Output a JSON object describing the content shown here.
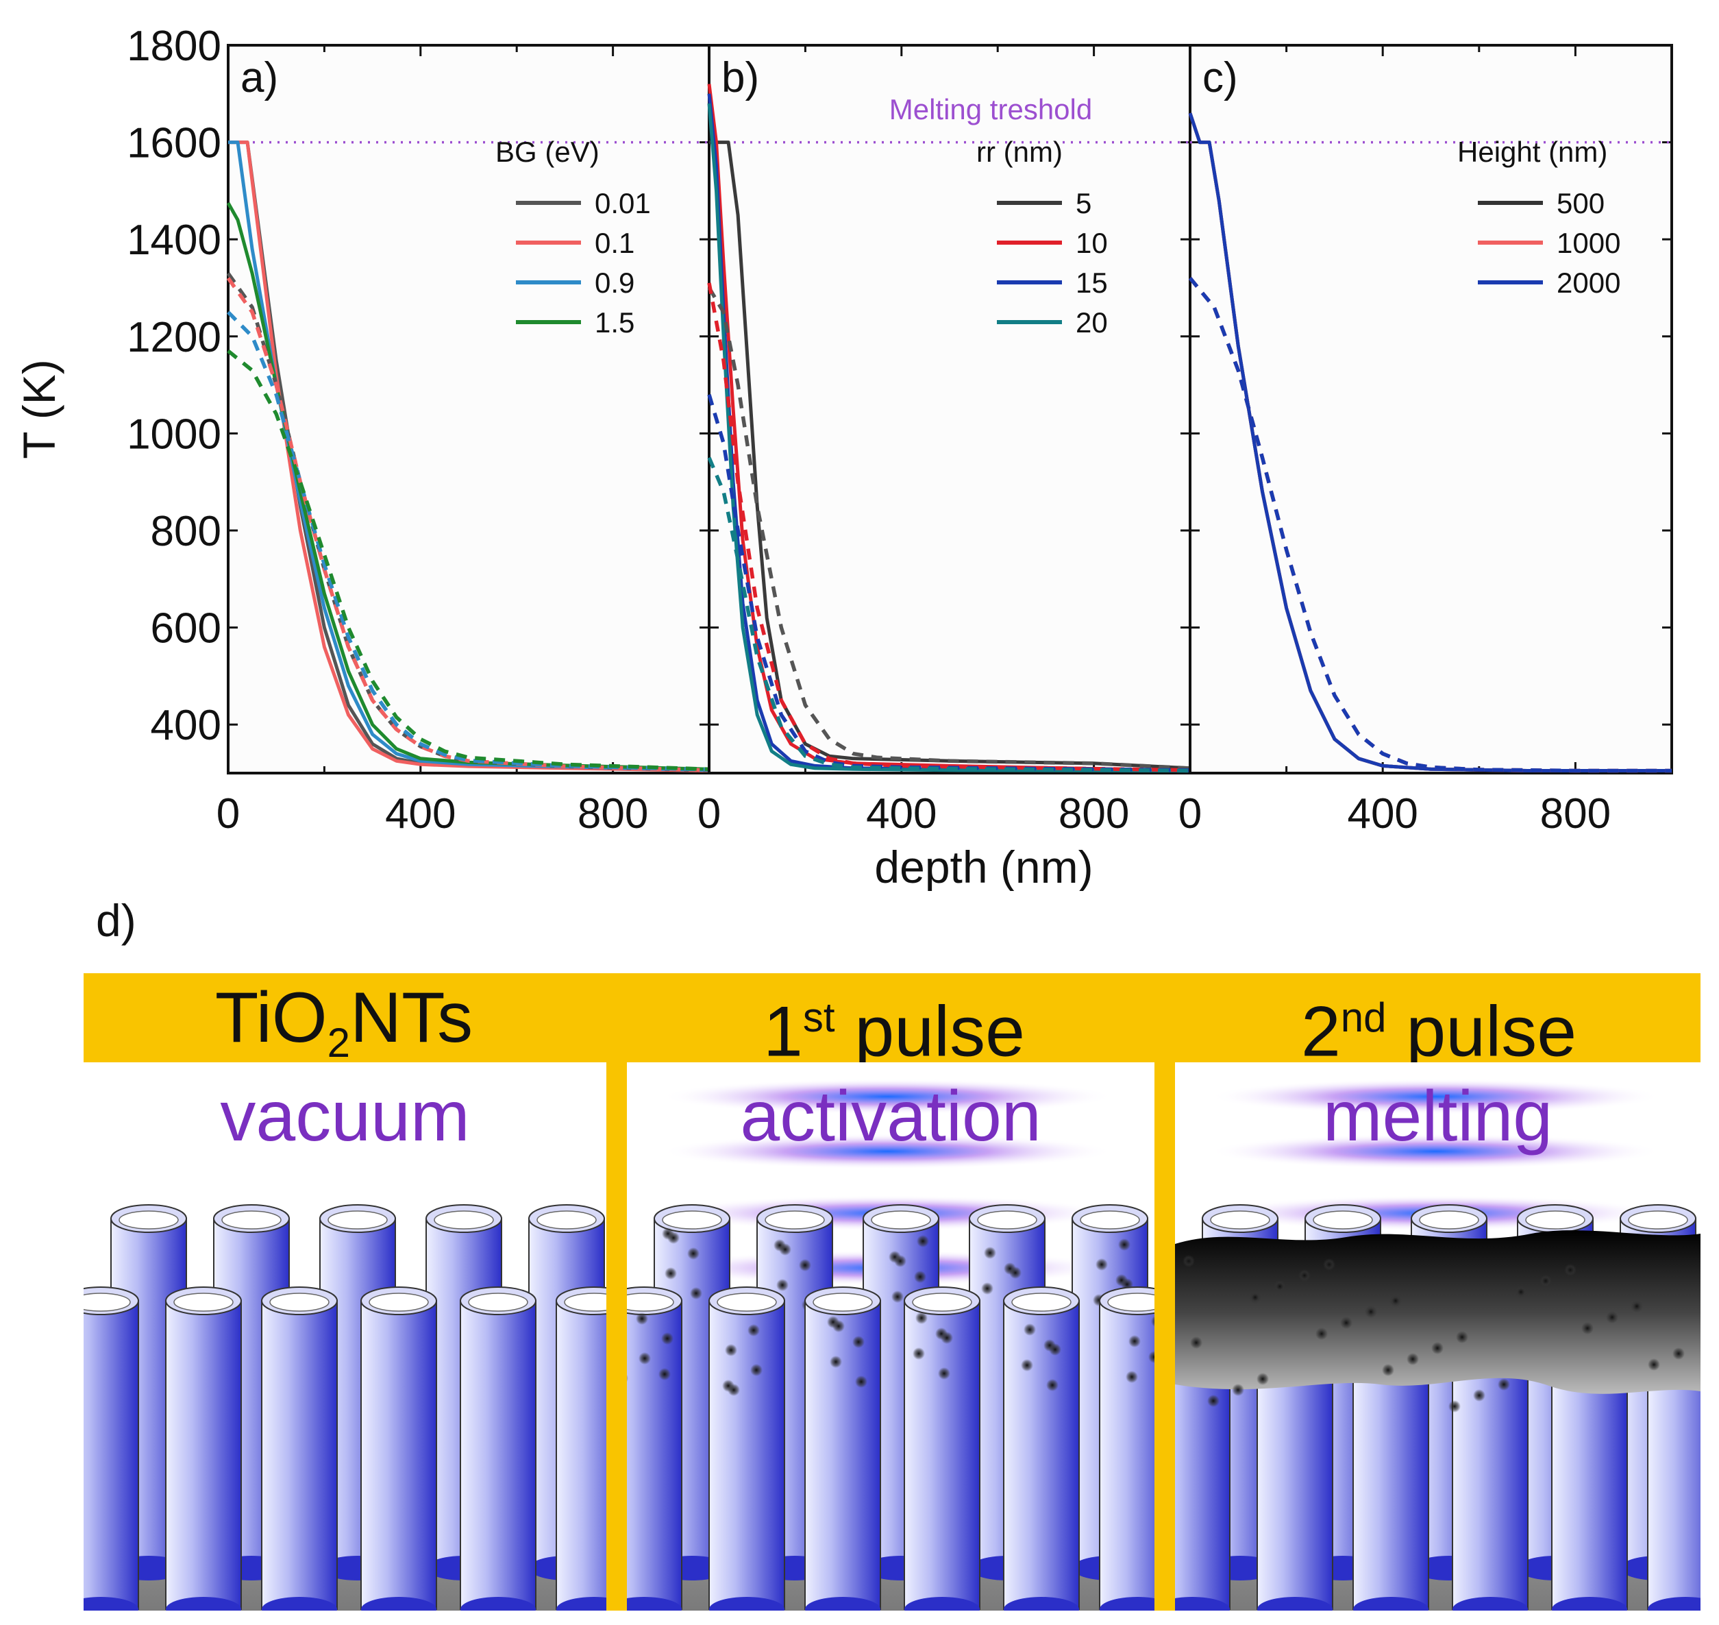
{
  "chart_data": [
    {
      "type": "line",
      "panel": "a)",
      "xlim": [
        0,
        1000
      ],
      "ylim": [
        300,
        1800
      ],
      "xticks": [
        "0",
        "400",
        "800"
      ],
      "xtick_values": [
        0,
        400,
        800
      ],
      "ylabel": "T (K)",
      "yticks": [
        "1800",
        "1600",
        "1400",
        "1200",
        "1000",
        "800",
        "600",
        "400"
      ],
      "ytick_values": [
        1800,
        1600,
        1400,
        1200,
        1000,
        800,
        600,
        400
      ],
      "legend_title": "BG (eV)",
      "threshold": 1600,
      "series": [
        {
          "name": "0.01",
          "color": "#555555",
          "style": "solid",
          "x": [
            0,
            40,
            60,
            100,
            150,
            200,
            250,
            300,
            350,
            400,
            500,
            700,
            1000
          ],
          "y": [
            1600,
            1600,
            1450,
            1150,
            850,
            600,
            440,
            360,
            330,
            320,
            315,
            312,
            305
          ]
        },
        {
          "name": "0.1",
          "color": "#F06060",
          "style": "solid",
          "x": [
            0,
            40,
            60,
            100,
            150,
            200,
            250,
            300,
            350,
            400,
            500,
            700,
            1000
          ],
          "y": [
            1600,
            1600,
            1440,
            1120,
            800,
            560,
            420,
            350,
            325,
            318,
            314,
            310,
            305
          ]
        },
        {
          "name": "0.9",
          "color": "#2E8BC8",
          "style": "solid",
          "x": [
            0,
            20,
            50,
            100,
            150,
            200,
            250,
            300,
            350,
            400,
            500,
            700,
            1000
          ],
          "y": [
            1600,
            1600,
            1380,
            1100,
            860,
            640,
            480,
            380,
            340,
            325,
            318,
            313,
            306
          ]
        },
        {
          "name": "1.5",
          "color": "#1F8A2E",
          "style": "solid",
          "x": [
            0,
            20,
            50,
            100,
            150,
            200,
            250,
            300,
            350,
            400,
            500,
            700,
            1000
          ],
          "y": [
            1475,
            1440,
            1330,
            1100,
            880,
            670,
            510,
            400,
            350,
            330,
            322,
            316,
            308
          ]
        },
        {
          "name": "0.01",
          "color": "#555555",
          "style": "dashed",
          "x": [
            0,
            50,
            100,
            150,
            200,
            250,
            300,
            350,
            400,
            450,
            500,
            700,
            1000
          ],
          "y": [
            1330,
            1260,
            1100,
            900,
            720,
            560,
            450,
            390,
            355,
            335,
            325,
            314,
            306
          ]
        },
        {
          "name": "0.1",
          "color": "#F06060",
          "style": "dashed",
          "x": [
            0,
            50,
            100,
            150,
            200,
            250,
            300,
            350,
            400,
            450,
            500,
            700,
            1000
          ],
          "y": [
            1320,
            1250,
            1100,
            900,
            720,
            560,
            450,
            390,
            355,
            335,
            325,
            314,
            306
          ]
        },
        {
          "name": "0.9",
          "color": "#2E8BC8",
          "style": "dashed",
          "x": [
            0,
            50,
            100,
            150,
            200,
            250,
            300,
            350,
            400,
            450,
            500,
            700,
            1000
          ],
          "y": [
            1250,
            1200,
            1080,
            900,
            730,
            580,
            470,
            400,
            360,
            338,
            326,
            315,
            307
          ]
        },
        {
          "name": "1.5",
          "color": "#1F8A2E",
          "style": "dashed",
          "x": [
            0,
            50,
            100,
            150,
            200,
            250,
            300,
            350,
            400,
            450,
            500,
            700,
            1000
          ],
          "y": [
            1170,
            1130,
            1040,
            900,
            750,
            600,
            490,
            415,
            370,
            345,
            332,
            318,
            308
          ]
        }
      ]
    },
    {
      "type": "line",
      "panel": "b)",
      "annotation": "Melting treshold",
      "xlim": [
        0,
        1000
      ],
      "ylim": [
        300,
        1800
      ],
      "xticks": [
        "0",
        "400",
        "800"
      ],
      "xtick_values": [
        0,
        400,
        800
      ],
      "xlabel": "depth (nm)",
      "legend_title": "rr (nm)",
      "threshold": 1600,
      "series": [
        {
          "name": "5",
          "color": "#3A3A3A",
          "style": "solid",
          "x": [
            0,
            20,
            40,
            60,
            80,
            100,
            120,
            150,
            200,
            250,
            300,
            500,
            800,
            1000
          ],
          "y": [
            1600,
            1600,
            1600,
            1450,
            1150,
            850,
            620,
            450,
            360,
            335,
            330,
            325,
            320,
            310
          ]
        },
        {
          "name": "10",
          "color": "#E0202A",
          "style": "solid",
          "x": [
            0,
            15,
            30,
            50,
            70,
            100,
            130,
            170,
            220,
            300,
            500,
            1000
          ],
          "y": [
            1720,
            1600,
            1350,
            1050,
            780,
            560,
            430,
            360,
            330,
            320,
            315,
            305
          ]
        },
        {
          "name": "15",
          "color": "#1A3BB0",
          "style": "solid",
          "x": [
            0,
            15,
            30,
            50,
            70,
            100,
            130,
            170,
            220,
            300,
            500,
            1000
          ],
          "y": [
            1700,
            1550,
            1250,
            900,
            650,
            450,
            360,
            325,
            315,
            310,
            308,
            305
          ]
        },
        {
          "name": "20",
          "color": "#127E86",
          "style": "solid",
          "x": [
            0,
            15,
            30,
            50,
            70,
            100,
            130,
            170,
            220,
            300,
            500,
            1000
          ],
          "y": [
            1680,
            1500,
            1200,
            850,
            600,
            420,
            345,
            318,
            310,
            308,
            306,
            305
          ]
        },
        {
          "name": "5",
          "color": "#555555",
          "style": "dashed",
          "x": [
            0,
            30,
            60,
            100,
            150,
            200,
            250,
            300,
            350,
            500,
            800,
            1000
          ],
          "y": [
            1300,
            1250,
            1100,
            850,
            600,
            440,
            370,
            340,
            332,
            325,
            320,
            310
          ]
        },
        {
          "name": "10",
          "color": "#E0202A",
          "style": "dashed",
          "x": [
            0,
            30,
            60,
            100,
            150,
            200,
            250,
            300,
            400,
            600,
            1000
          ],
          "y": [
            1310,
            1150,
            900,
            640,
            450,
            360,
            330,
            320,
            315,
            312,
            306
          ]
        },
        {
          "name": "15",
          "color": "#1A3BB0",
          "style": "dashed",
          "x": [
            0,
            30,
            60,
            100,
            150,
            200,
            250,
            300,
            400,
            600,
            1000
          ],
          "y": [
            1080,
            980,
            800,
            580,
            420,
            345,
            322,
            315,
            312,
            310,
            306
          ]
        },
        {
          "name": "20",
          "color": "#127E86",
          "style": "dashed",
          "x": [
            0,
            30,
            60,
            100,
            150,
            200,
            250,
            300,
            400,
            600,
            1000
          ],
          "y": [
            950,
            880,
            740,
            540,
            395,
            335,
            318,
            312,
            310,
            308,
            305
          ]
        }
      ]
    },
    {
      "type": "line",
      "panel": "c)",
      "xlim": [
        0,
        1000
      ],
      "ylim": [
        300,
        1800
      ],
      "xticks": [
        "0",
        "400",
        "800"
      ],
      "xtick_values": [
        0,
        400,
        800
      ],
      "legend_title": "Height (nm)",
      "threshold": 1600,
      "series": [
        {
          "name": "500",
          "color": "#333333",
          "style": "solid",
          "x": [
            0,
            20,
            40,
            60,
            100,
            150,
            200,
            250,
            300,
            350,
            400,
            500,
            700,
            1000
          ],
          "y": [
            1660,
            1600,
            1600,
            1480,
            1180,
            880,
            640,
            470,
            370,
            330,
            315,
            308,
            305,
            305
          ]
        },
        {
          "name": "1000",
          "color": "#F06060",
          "style": "solid",
          "x": [
            0,
            20,
            40,
            60,
            100,
            150,
            200,
            250,
            300,
            350,
            400,
            500,
            700,
            1000
          ],
          "y": [
            1660,
            1600,
            1600,
            1480,
            1180,
            880,
            640,
            470,
            370,
            330,
            315,
            308,
            305,
            305
          ]
        },
        {
          "name": "2000",
          "color": "#1A3BB0",
          "style": "solid",
          "x": [
            0,
            20,
            40,
            60,
            100,
            150,
            200,
            250,
            300,
            350,
            400,
            500,
            700,
            1000
          ],
          "y": [
            1660,
            1600,
            1600,
            1480,
            1180,
            880,
            640,
            470,
            370,
            330,
            315,
            308,
            305,
            305
          ]
        },
        {
          "name": "1000",
          "color": "#E04848",
          "style": "dashed",
          "x": [
            0,
            50,
            100,
            150,
            200,
            250,
            300,
            350,
            400,
            450,
            500,
            600,
            800,
            1000
          ],
          "y": [
            1320,
            1260,
            1130,
            950,
            760,
            590,
            460,
            380,
            340,
            320,
            312,
            307,
            305,
            305
          ]
        },
        {
          "name": "2000",
          "color": "#1A3BB0",
          "style": "dashed",
          "x": [
            0,
            50,
            100,
            150,
            200,
            250,
            300,
            350,
            400,
            450,
            500,
            600,
            800,
            1000
          ],
          "y": [
            1320,
            1260,
            1130,
            950,
            760,
            590,
            460,
            380,
            340,
            320,
            312,
            307,
            305,
            305
          ]
        }
      ]
    }
  ],
  "illustration": {
    "panel_label": "d)",
    "colors": {
      "band": "#F9C400",
      "label_purple": "#7A2FC0",
      "tube": "#3F45D8",
      "substrate": "#8A8A8A"
    },
    "stages": [
      {
        "title_main": "TiO",
        "title_sub": "2",
        "title_rest": "NTs",
        "caption": "vacuum"
      },
      {
        "title_main": "1",
        "title_sup": "st",
        "title_rest": " pulse",
        "caption": "activation"
      },
      {
        "title_main": "2",
        "title_sup": "nd",
        "title_rest": " pulse",
        "caption": "melting"
      }
    ]
  }
}
